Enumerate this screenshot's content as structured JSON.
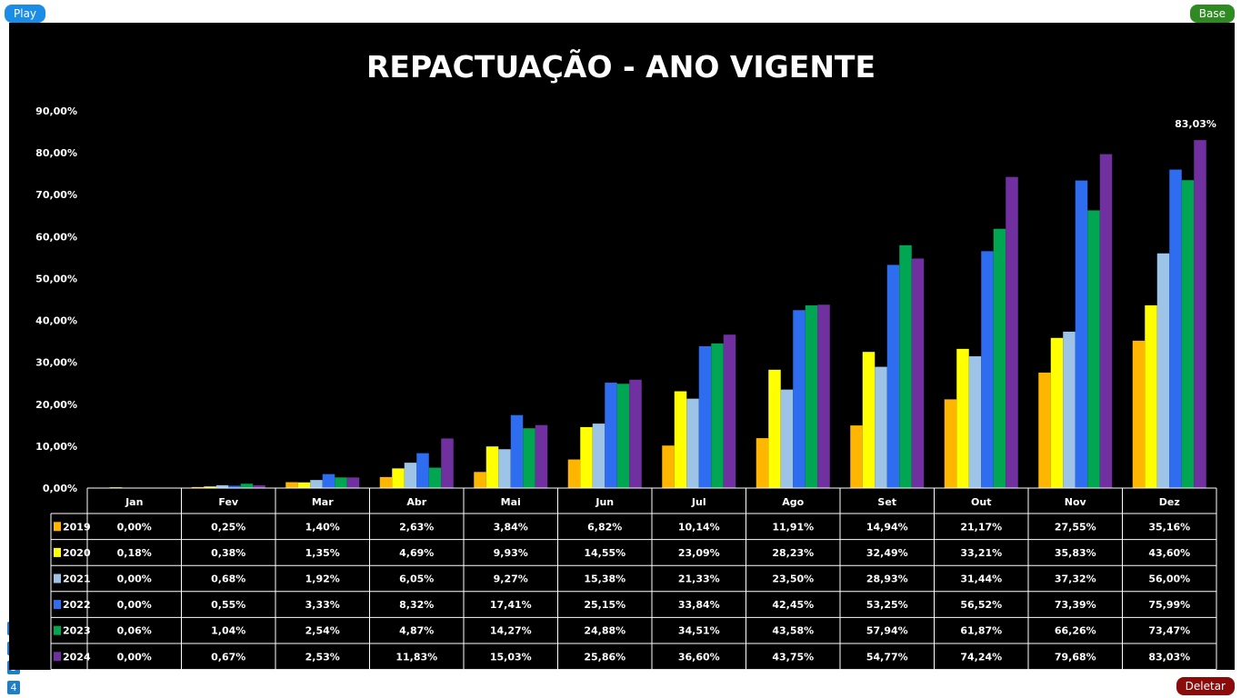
{
  "controls": {
    "play_label": "Play",
    "base_label": "Base",
    "delete_label": "Deletar",
    "pages": [
      "1",
      "2",
      "3",
      "4"
    ]
  },
  "chart_data": {
    "type": "bar",
    "title": "REPACTUAÇÃO - ANO VIGENTE",
    "categories": [
      "Jan",
      "Fev",
      "Mar",
      "Abr",
      "Mai",
      "Jun",
      "Jul",
      "Ago",
      "Set",
      "Out",
      "Nov",
      "Dez"
    ],
    "y_ticks": [
      "0,00%",
      "10,00%",
      "20,00%",
      "30,00%",
      "40,00%",
      "50,00%",
      "60,00%",
      "70,00%",
      "80,00%",
      "90,00%"
    ],
    "ylim": [
      0,
      90
    ],
    "grid": false,
    "legend_placement": "data-table-left",
    "series": [
      {
        "name": "2019",
        "color": "#FFB600",
        "values": [
          0.0,
          0.25,
          1.4,
          2.63,
          3.84,
          6.82,
          10.14,
          11.91,
          14.94,
          21.17,
          27.55,
          35.16
        ],
        "labels": [
          "0,00%",
          "0,25%",
          "1,40%",
          "2,63%",
          "3,84%",
          "6,82%",
          "10,14%",
          "11,91%",
          "14,94%",
          "21,17%",
          "27,55%",
          "35,16%"
        ]
      },
      {
        "name": "2020",
        "color": "#FFFF00",
        "values": [
          0.18,
          0.38,
          1.35,
          4.69,
          9.93,
          14.55,
          23.09,
          28.23,
          32.49,
          33.21,
          35.83,
          43.6
        ],
        "labels": [
          "0,18%",
          "0,38%",
          "1,35%",
          "4,69%",
          "9,93%",
          "14,55%",
          "23,09%",
          "28,23%",
          "32,49%",
          "33,21%",
          "35,83%",
          "43,60%"
        ]
      },
      {
        "name": "2021",
        "color": "#9DC3E6",
        "values": [
          0.0,
          0.68,
          1.92,
          6.05,
          9.27,
          15.38,
          21.33,
          23.5,
          28.93,
          31.44,
          37.32,
          56.0
        ],
        "labels": [
          "0,00%",
          "0,68%",
          "1,92%",
          "6,05%",
          "9,27%",
          "15,38%",
          "21,33%",
          "23,50%",
          "28,93%",
          "31,44%",
          "37,32%",
          "56,00%"
        ]
      },
      {
        "name": "2022",
        "color": "#2E6CF0",
        "values": [
          0.0,
          0.55,
          3.33,
          8.32,
          17.41,
          25.15,
          33.84,
          42.45,
          53.25,
          56.52,
          73.39,
          75.99
        ],
        "labels": [
          "0,00%",
          "0,55%",
          "3,33%",
          "8,32%",
          "17,41%",
          "25,15%",
          "33,84%",
          "42,45%",
          "53,25%",
          "56,52%",
          "73,39%",
          "75,99%"
        ]
      },
      {
        "name": "2023",
        "color": "#00A651",
        "values": [
          0.06,
          1.04,
          2.54,
          4.87,
          14.27,
          24.88,
          34.51,
          43.58,
          57.94,
          61.87,
          66.26,
          73.47
        ],
        "labels": [
          "0,06%",
          "1,04%",
          "2,54%",
          "4,87%",
          "14,27%",
          "24,88%",
          "34,51%",
          "43,58%",
          "57,94%",
          "61,87%",
          "66,26%",
          "73,47%"
        ]
      },
      {
        "name": "2024",
        "color": "#7030A0",
        "values": [
          0.0,
          0.67,
          2.53,
          11.83,
          15.03,
          25.86,
          36.6,
          43.75,
          54.77,
          74.24,
          79.68,
          83.03
        ],
        "labels": [
          "0,00%",
          "0,67%",
          "2,53%",
          "11,83%",
          "15,03%",
          "25,86%",
          "36,60%",
          "43,75%",
          "54,77%",
          "74,24%",
          "79,68%",
          "83,03%"
        ]
      }
    ],
    "annotations": [
      {
        "series": "2024",
        "category": "Dez",
        "text": "83,03%"
      }
    ]
  }
}
